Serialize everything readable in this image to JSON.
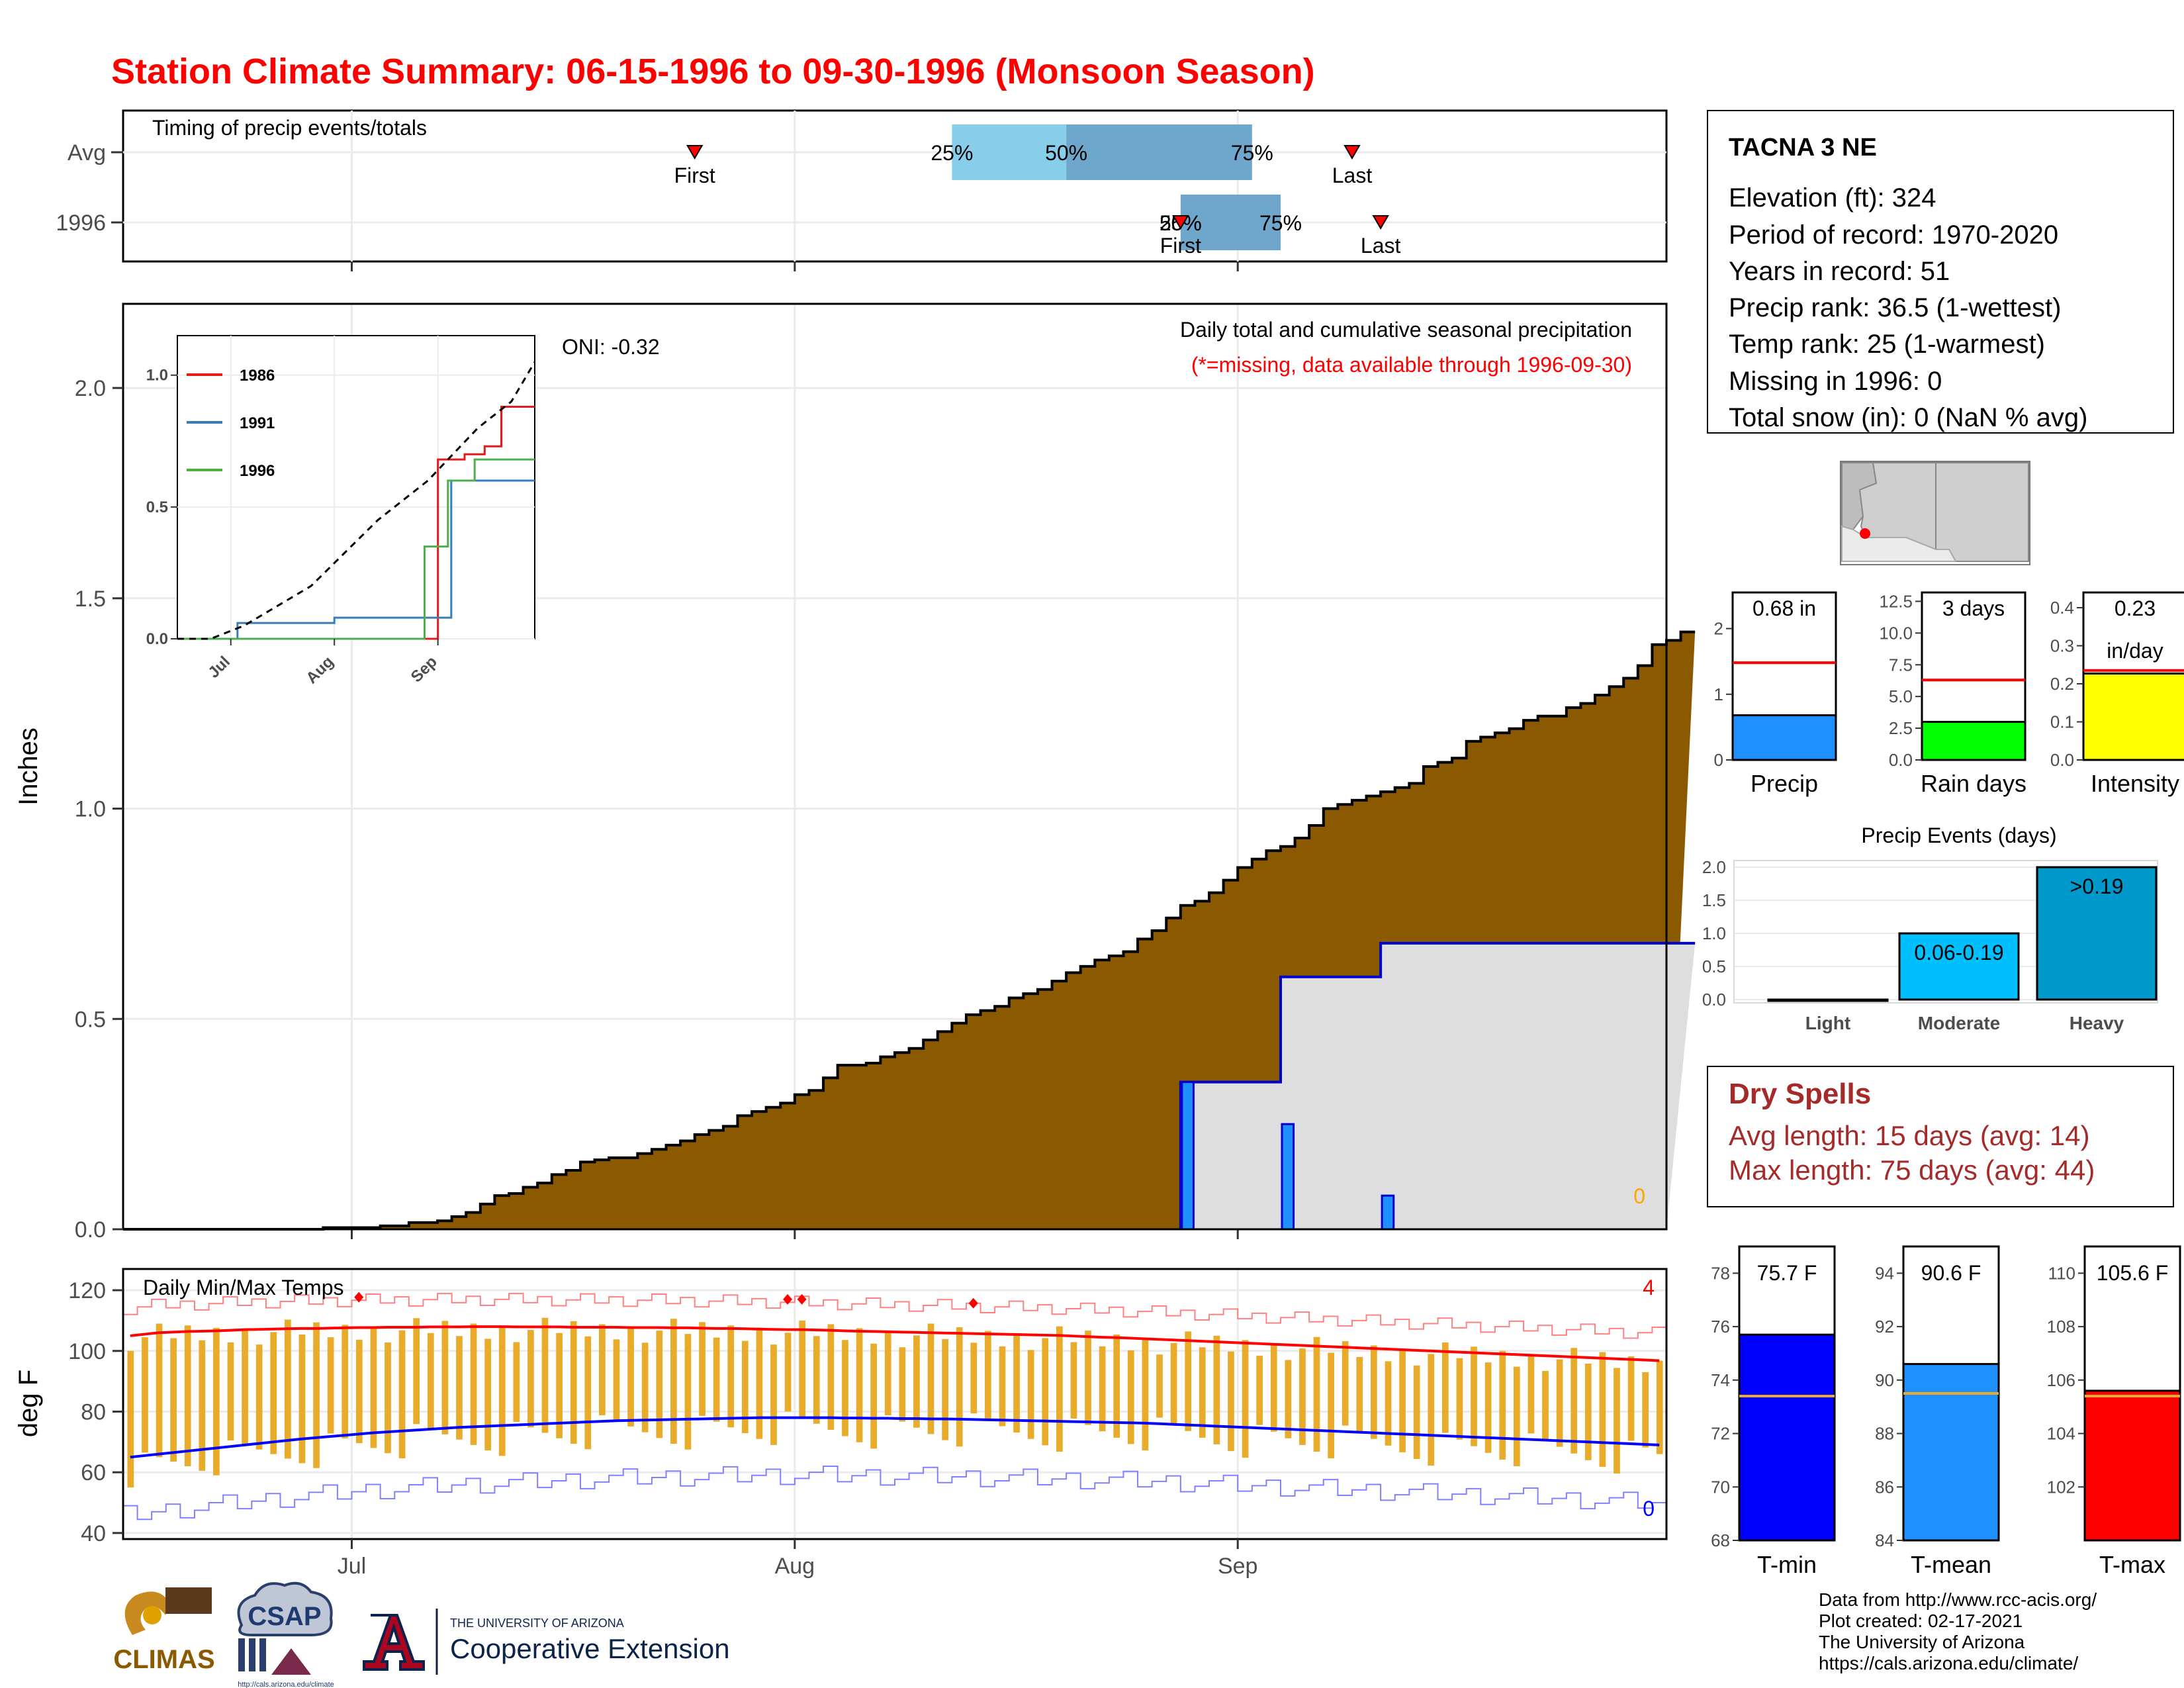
{
  "title": "Station Climate Summary: 06-15-1996 to 09-30-1996 (Monsoon Season)",
  "colors": {
    "title": "#ff0000",
    "precip_fill": "#8b5a00",
    "current_precip_fill": "#dedede",
    "current_precip_line": "#0000cc",
    "daily_bar": "#1e90ff",
    "timing_light": "#87ceeb",
    "timing_dark": "#6ea6cc",
    "temp_bar": "#e8ab2a",
    "tmax_avg": "#ff0000",
    "tmin_avg": "#0000ff",
    "dry_spell_text": "#a52a2a"
  },
  "timing_panel": {
    "title": "Timing of precip events/totals",
    "rows": [
      {
        "label": "Avg",
        "first": "First",
        "last": "Last",
        "q25": "25%",
        "q50": "50%",
        "q75": "75%"
      },
      {
        "label": "1996",
        "first": "First",
        "last": "Last",
        "q25": "25%",
        "q50": "50%",
        "q75": "75%"
      }
    ]
  },
  "precip_panel": {
    "ylabel": "Inches",
    "title": "Daily total and cumulative seasonal precipitation",
    "subtitle": "(*=missing, data available through 1996-09-30)",
    "oni": "ONI: -0.32",
    "missing_count": "0",
    "y_ticks": [
      "0.0",
      "0.5",
      "1.0",
      "1.5",
      "2.0"
    ],
    "inset_legend": [
      "1986",
      "1991",
      "1996"
    ],
    "inset_y_ticks": [
      "0.0",
      "0.5",
      "1.0"
    ],
    "inset_x_ticks": [
      "Jul",
      "Aug",
      "Sep"
    ]
  },
  "temp_panel": {
    "ylabel": "deg F",
    "title": "Daily Min/Max Temps",
    "record_high_count": "4",
    "record_low_count": "0",
    "y_ticks": [
      "40",
      "60",
      "80",
      "100",
      "120"
    ],
    "x_ticks": [
      "Jul",
      "Aug",
      "Sep"
    ]
  },
  "station": {
    "name": "TACNA 3 NE",
    "lines": [
      "Elevation (ft): 324",
      "Period of record: 1970-2020",
      "Years in record: 51",
      "Precip rank: 36.5 (1-wettest)",
      "Temp rank: 25 (1-warmest)",
      "Missing in 1996: 0",
      "Total snow (in): 0 (NaN % avg)"
    ]
  },
  "mini_bars": [
    {
      "label": "Precip",
      "value_label": "0.68 in",
      "value": 0.68,
      "avg": 1.48,
      "ymax": 2.55,
      "ticks": [
        "0",
        "1",
        "2"
      ],
      "tick_vals": [
        0,
        1,
        2
      ],
      "color": "#1e90ff"
    },
    {
      "label": "Rain days",
      "value_label": "3 days",
      "value": 3,
      "avg": 6.3,
      "ymax": 13.2,
      "ticks": [
        "0.0",
        "2.5",
        "5.0",
        "7.5",
        "10.0",
        "12.5"
      ],
      "tick_vals": [
        0,
        2.5,
        5,
        7.5,
        10,
        12.5
      ],
      "color": "#00ff00"
    },
    {
      "label": "Intensity",
      "value_label": "0.23",
      "value_label2": "in/day",
      "value": 0.227,
      "avg": 0.235,
      "ymax": 0.44,
      "ticks": [
        "0.0",
        "0.1",
        "0.2",
        "0.3",
        "0.4"
      ],
      "tick_vals": [
        0,
        0.1,
        0.2,
        0.3,
        0.4
      ],
      "color": "#ffff00"
    }
  ],
  "events_chart": {
    "title": "Precip Events (days)",
    "categories": [
      "Light",
      "Moderate",
      "Heavy"
    ],
    "values": [
      0,
      1,
      2
    ],
    "bar_labels": [
      "",
      "0.06-0.19",
      ">0.19"
    ],
    "y_ticks": [
      "0.0",
      "0.5",
      "1.0",
      "1.5",
      "2.0"
    ],
    "colors": [
      "#1e90ff",
      "#00bfff",
      "#0099cc"
    ]
  },
  "dry_spells": {
    "title": "Dry Spells",
    "avg_line": "Avg length: 15 days (avg: 14)",
    "max_line": "Max length: 75 days (avg: 44)"
  },
  "temp_bars": [
    {
      "label": "T-min",
      "value_label": "75.7 F",
      "value": 75.7,
      "avg": 73.4,
      "ymin": 68,
      "ymax": 79,
      "ticks": [
        "68",
        "70",
        "72",
        "74",
        "76",
        "78"
      ],
      "tick_vals": [
        68,
        70,
        72,
        74,
        76,
        78
      ],
      "color": "#0000ff"
    },
    {
      "label": "T-mean",
      "value_label": "90.6 F",
      "value": 90.6,
      "avg": 89.5,
      "ymin": 84,
      "ymax": 95,
      "ticks": [
        "84",
        "86",
        "88",
        "90",
        "92",
        "94"
      ],
      "tick_vals": [
        84,
        86,
        88,
        90,
        92,
        94
      ],
      "color": "#1e90ff"
    },
    {
      "label": "T-max",
      "value_label": "105.6 F",
      "value": 105.6,
      "avg": 105.4,
      "ymin": 100,
      "ymax": 111,
      "ticks": [
        "102",
        "104",
        "106",
        "108",
        "110"
      ],
      "tick_vals": [
        102,
        104,
        106,
        108,
        110
      ],
      "color": "#ff0000"
    }
  ],
  "footer": {
    "lines": [
      "Data from http://www.rcc-acis.org/",
      "Plot created: 02-17-2021",
      "The University of Arizona",
      "https://cals.arizona.edu/climate/"
    ],
    "logos": {
      "climas": "CLIMAS",
      "csap": "CSAP",
      "csap_url": "http://cals.arizona.edu/climate",
      "ua_small": "THE UNIVERSITY OF ARIZONA",
      "ua_big": "Cooperative Extension"
    }
  },
  "chart_data": [
    {
      "type": "bar",
      "title": "Timing of precip events/totals",
      "categories": [
        "Avg",
        "1996"
      ],
      "note": "day-of-season positions",
      "series": [
        {
          "name": "First",
          "values": [
            "07-25",
            "08-28"
          ]
        },
        {
          "name": "25%",
          "values": [
            "08-12",
            "08-28"
          ]
        },
        {
          "name": "50%",
          "values": [
            "08-20",
            "08-28"
          ]
        },
        {
          "name": "75%",
          "values": [
            "09-02",
            "09-04"
          ]
        },
        {
          "name": "Last",
          "values": [
            "09-09",
            "09-11"
          ]
        }
      ]
    },
    {
      "type": "area",
      "title": "Daily total and cumulative seasonal precipitation",
      "ylabel": "Inches",
      "ylim": [
        0,
        2.2
      ],
      "x_start": "1996-06-15",
      "x_end": "1996-09-30",
      "series": [
        {
          "name": "Avg cumulative",
          "values": [
            0.0,
            0.0,
            0.0,
            0.0,
            0.0,
            0.0,
            0.0,
            0.0,
            0.0,
            0.0,
            0.0,
            0.0,
            0.0,
            0.0,
            0.004,
            0.004,
            0.004,
            0.004,
            0.008,
            0.008,
            0.016,
            0.016,
            0.02,
            0.03,
            0.04,
            0.06,
            0.08,
            0.085,
            0.1,
            0.11,
            0.13,
            0.14,
            0.16,
            0.165,
            0.17,
            0.17,
            0.18,
            0.19,
            0.2,
            0.21,
            0.225,
            0.235,
            0.245,
            0.27,
            0.28,
            0.29,
            0.3,
            0.32,
            0.33,
            0.36,
            0.39,
            0.39,
            0.395,
            0.41,
            0.42,
            0.43,
            0.45,
            0.47,
            0.49,
            0.51,
            0.52,
            0.53,
            0.55,
            0.56,
            0.57,
            0.59,
            0.61,
            0.625,
            0.64,
            0.65,
            0.66,
            0.69,
            0.71,
            0.74,
            0.77,
            0.78,
            0.8,
            0.83,
            0.86,
            0.88,
            0.9,
            0.91,
            0.93,
            0.96,
            1.0,
            1.01,
            1.02,
            1.03,
            1.04,
            1.05,
            1.06,
            1.1,
            1.11,
            1.12,
            1.16,
            1.17,
            1.18,
            1.19,
            1.21,
            1.22,
            1.22,
            1.24,
            1.25,
            1.27,
            1.29,
            1.31,
            1.34,
            1.39,
            1.4,
            1.42
          ]
        },
        {
          "name": "1996 cumulative",
          "values": [
            0,
            0,
            0,
            0,
            0,
            0,
            0,
            0,
            0,
            0,
            0,
            0,
            0,
            0,
            0,
            0,
            0,
            0,
            0,
            0,
            0,
            0,
            0,
            0,
            0,
            0,
            0,
            0,
            0,
            0,
            0,
            0,
            0,
            0,
            0,
            0,
            0,
            0,
            0,
            0,
            0,
            0,
            0,
            0,
            0,
            0,
            0,
            0,
            0,
            0,
            0,
            0,
            0,
            0,
            0,
            0,
            0,
            0,
            0,
            0,
            0,
            0,
            0,
            0,
            0,
            0,
            0,
            0,
            0,
            0,
            0,
            0,
            0,
            0,
            0.35,
            0.35,
            0.35,
            0.35,
            0.35,
            0.35,
            0.35,
            0.6,
            0.6,
            0.6,
            0.6,
            0.6,
            0.6,
            0.6,
            0.68,
            0.68,
            0.68,
            0.68,
            0.68,
            0.68,
            0.68,
            0.68,
            0.68,
            0.68,
            0.68,
            0.68,
            0.68,
            0.68,
            0.68,
            0.68,
            0.68,
            0.68,
            0.68,
            0.68,
            0.68,
            0.68
          ]
        },
        {
          "name": "1996 daily",
          "values": [
            0,
            0,
            0,
            0,
            0,
            0,
            0,
            0,
            0,
            0,
            0,
            0,
            0,
            0,
            0,
            0,
            0,
            0,
            0,
            0,
            0,
            0,
            0,
            0,
            0,
            0,
            0,
            0,
            0,
            0,
            0,
            0,
            0,
            0,
            0,
            0,
            0,
            0,
            0,
            0,
            0,
            0,
            0,
            0,
            0,
            0,
            0,
            0,
            0,
            0,
            0,
            0,
            0,
            0,
            0,
            0,
            0,
            0,
            0,
            0,
            0,
            0,
            0,
            0,
            0,
            0,
            0,
            0,
            0,
            0,
            0,
            0,
            0,
            0,
            0.35,
            0,
            0,
            0,
            0,
            0,
            0,
            0.25,
            0,
            0,
            0,
            0,
            0,
            0,
            0.08,
            0,
            0,
            0,
            0,
            0,
            0,
            0,
            0,
            0,
            0,
            0,
            0,
            0,
            0,
            0,
            0,
            0,
            0,
            0,
            0,
            0
          ]
        }
      ],
      "inset": {
        "type": "line",
        "categories": [
          "Jul",
          "Aug",
          "Sep"
        ],
        "series": [
          {
            "name": "1986",
            "x": [
              0,
              76,
              78,
              86,
              92,
              97,
              107
            ],
            "values": [
              0,
              0,
              0.68,
              0.7,
              0.73,
              0.88,
              0.88
            ]
          },
          {
            "name": "1991",
            "x": [
              0,
              17,
              18,
              46,
              47,
              80,
              82,
              107
            ],
            "values": [
              0,
              0,
              0.06,
              0.06,
              0.08,
              0.08,
              0.6,
              0.6
            ]
          },
          {
            "name": "1996",
            "x": [
              0,
              74,
              81,
              89,
              107
            ],
            "values": [
              0,
              0.35,
              0.6,
              0.68,
              0.68
            ]
          },
          {
            "name": "Avg",
            "x": [
              0,
              10,
              20,
              40,
              60,
              75,
              90,
              100,
              107
            ],
            "values": [
              0,
              0,
              0.05,
              0.2,
              0.45,
              0.6,
              0.8,
              0.9,
              1.05
            ]
          }
        ]
      }
    },
    {
      "type": "line",
      "title": "Daily Min/Max Temps",
      "ylabel": "deg F",
      "ylim": [
        38,
        127
      ],
      "x_start": "1996-06-15",
      "x_end": "1996-09-30",
      "series": [
        {
          "name": "Avg Tmax",
          "values": [
            105,
            105.5,
            106,
            106.2,
            106.4,
            106.5,
            106.6,
            106.8,
            107,
            107.1,
            107.2,
            107.3,
            107.4,
            107.4,
            107.5,
            107.6,
            107.7,
            107.7,
            107.8,
            107.8,
            107.8,
            107.9,
            107.9,
            107.9,
            108,
            108,
            108,
            107.9,
            107.9,
            107.9,
            107.9,
            107.8,
            107.8,
            107.8,
            107.8,
            107.7,
            107.7,
            107.7,
            107.6,
            107.6,
            107.5,
            107.4,
            107.4,
            107.3,
            107.2,
            107.1,
            107,
            107,
            106.9,
            106.8,
            106.6,
            106.5,
            106.4,
            106.3,
            106.2,
            106.1,
            106,
            105.9,
            105.8,
            105.7,
            105.6,
            105.5,
            105.4,
            105.3,
            105.2,
            105.1,
            104.9,
            104.7,
            104.5,
            104.4,
            104.2,
            104,
            103.8,
            103.6,
            103.4,
            103.2,
            103,
            102.8,
            102.6,
            102.4,
            102.2,
            102,
            101.8,
            101.6,
            101.4,
            101.2,
            101,
            100.8,
            100.6,
            100.4,
            100.2,
            100,
            99.8,
            99.6,
            99.4,
            99.2,
            99,
            98.8,
            98.6,
            98.4,
            98.2,
            98,
            97.8,
            97.6,
            97.4,
            97.2,
            97,
            96.8
          ]
        },
        {
          "name": "Avg Tmin",
          "values": [
            65,
            65.5,
            66,
            66.5,
            67,
            67.5,
            68,
            68.5,
            69,
            69.5,
            70,
            70.5,
            71,
            71.4,
            71.8,
            72.2,
            72.6,
            73,
            73.3,
            73.6,
            73.9,
            74.2,
            74.5,
            74.8,
            75,
            75.2,
            75.4,
            75.6,
            75.8,
            76,
            76.2,
            76.4,
            76.6,
            76.8,
            77,
            77.1,
            77.2,
            77.3,
            77.4,
            77.5,
            77.6,
            77.7,
            77.8,
            77.9,
            78,
            78,
            78,
            78,
            78,
            78,
            77.9,
            77.9,
            77.8,
            77.8,
            77.7,
            77.7,
            77.6,
            77.6,
            77.5,
            77.4,
            77.3,
            77.2,
            77.1,
            77,
            76.9,
            76.8,
            76.7,
            76.6,
            76.5,
            76.4,
            76.3,
            76.2,
            76,
            75.8,
            75.6,
            75.4,
            75.2,
            75,
            74.8,
            74.6,
            74.4,
            74.2,
            74,
            73.8,
            73.6,
            73.4,
            73.2,
            73,
            72.8,
            72.6,
            72.4,
            72.2,
            72,
            71.8,
            71.6,
            71.4,
            71.2,
            71,
            70.8,
            70.6,
            70.4,
            70.2,
            70,
            69.8,
            69.6,
            69.4,
            69.2,
            69
          ]
        }
      ]
    },
    {
      "type": "bar",
      "categories": [
        "Precip",
        "Rain days",
        "Intensity"
      ],
      "values": [
        0.68,
        3,
        0.23
      ]
    },
    {
      "type": "bar",
      "title": "Precip Events (days)",
      "categories": [
        "Light",
        "Moderate",
        "Heavy"
      ],
      "values": [
        0,
        1,
        2
      ]
    },
    {
      "type": "bar",
      "categories": [
        "T-min",
        "T-mean",
        "T-max"
      ],
      "values": [
        75.7,
        90.6,
        105.6
      ]
    }
  ]
}
